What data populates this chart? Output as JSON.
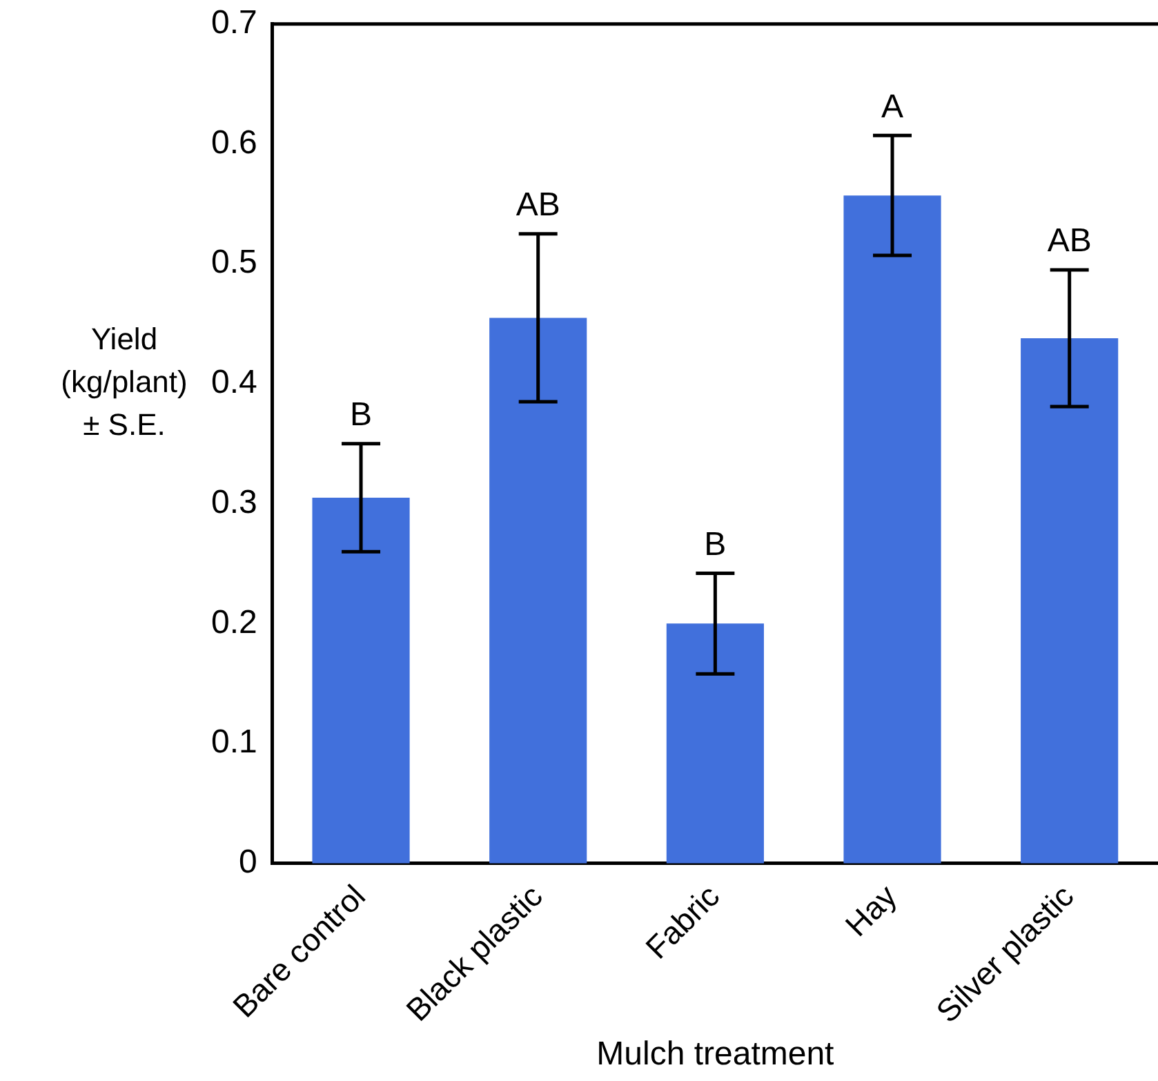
{
  "chart_data": {
    "type": "bar",
    "xlabel": "Mulch treatment",
    "ylabel": "Yield\n(kg/plant)\n± S.E.",
    "categories": [
      "Bare control",
      "Black plastic",
      "Fabric",
      "Hay",
      "Silver plastic"
    ],
    "values": [
      0.305,
      0.455,
      0.2,
      0.557,
      0.438
    ],
    "errors": [
      0.045,
      0.07,
      0.042,
      0.05,
      0.057
    ],
    "color": "#4170dc",
    "ylim": [
      0,
      0.7
    ],
    "yticks": [
      0,
      0.1,
      0.2,
      0.3,
      0.4,
      0.5,
      0.6,
      0.7
    ],
    "grid": false,
    "legend": false,
    "annotations": [
      {
        "text": "B",
        "x": "Bare control",
        "y": 0.35
      },
      {
        "text": "AB",
        "x": "Black plastic",
        "y": 0.525
      },
      {
        "text": "B",
        "x": "Fabric",
        "y": 0.242
      },
      {
        "text": "A",
        "x": "Hay",
        "y": 0.607
      },
      {
        "text": "AB",
        "x": "Silver plastic",
        "y": 0.495
      }
    ]
  }
}
